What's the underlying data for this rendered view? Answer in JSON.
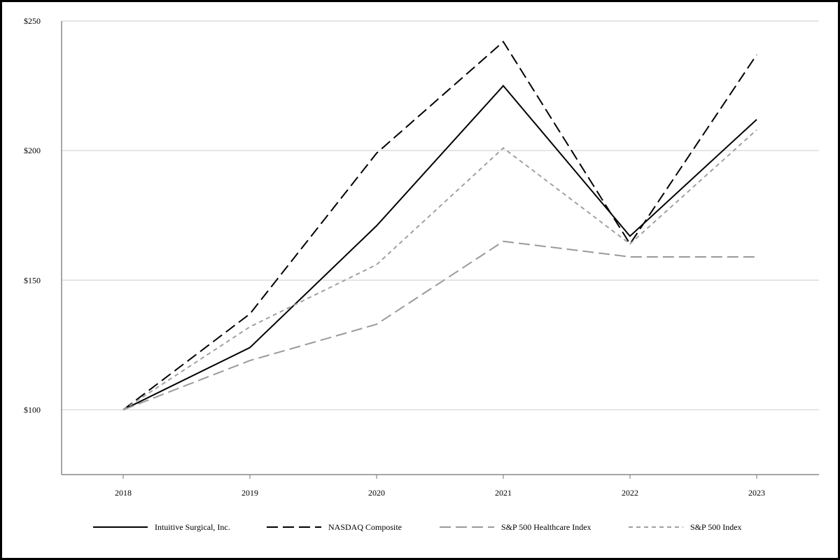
{
  "chart_data": {
    "type": "line",
    "title": "",
    "xlabel": "",
    "ylabel": "",
    "x": [
      "2018",
      "2019",
      "2020",
      "2021",
      "2022",
      "2023"
    ],
    "y_ticks": [
      "$100",
      "$150",
      "$200",
      "$250"
    ],
    "y_tick_values": [
      100,
      150,
      200,
      250
    ],
    "ylim": [
      75,
      250
    ],
    "grid": "horizontal",
    "legend": "bottom",
    "series": [
      {
        "name": "Intuitive Surgical, Inc.",
        "values": [
          100,
          124,
          171,
          225,
          167,
          212
        ],
        "color": "#000000",
        "dash": "solid"
      },
      {
        "name": "NASDAQ Composite",
        "values": [
          100,
          137,
          199,
          242,
          164,
          237
        ],
        "color": "#000000",
        "dash": "long-dash"
      },
      {
        "name": "S&P 500 Healthcare Index",
        "values": [
          100,
          119,
          133,
          165,
          159,
          159
        ],
        "color": "#9a9a9a",
        "dash": "long-dash"
      },
      {
        "name": "S&P 500 Index",
        "values": [
          100,
          132,
          156,
          201,
          164,
          208
        ],
        "color": "#a0a0a0",
        "dash": "short-dash"
      }
    ]
  }
}
